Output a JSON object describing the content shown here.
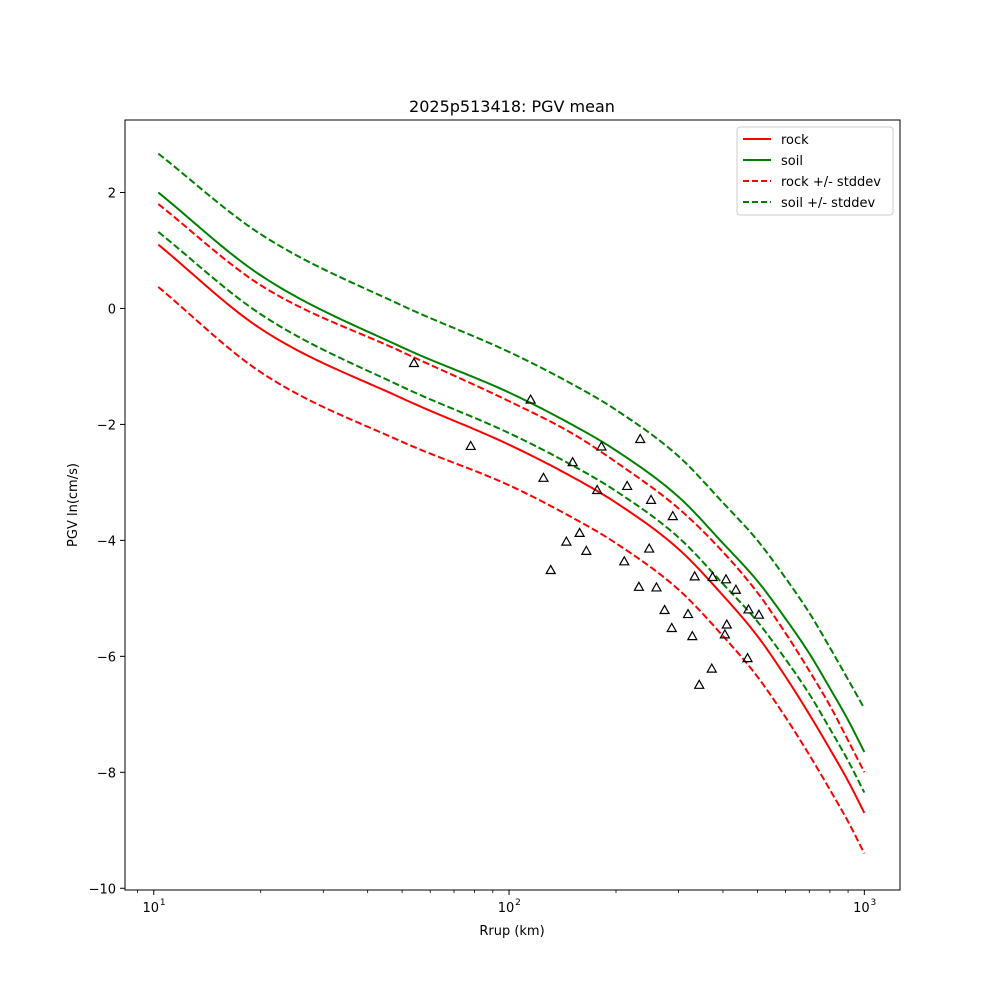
{
  "chart_data": {
    "type": "line",
    "title": "2025p513418: PGV mean",
    "xlabel": "Rrup (km)",
    "ylabel": "PGV ln(cm/s)",
    "xscale": "log",
    "xlim": [
      8.3,
      1260
    ],
    "ylim": [
      -10.03,
      3.25
    ],
    "x_ticks": [
      {
        "value": 10,
        "base": "10",
        "exp": "1"
      },
      {
        "value": 100,
        "base": "10",
        "exp": "2"
      },
      {
        "value": 1000,
        "base": "10",
        "exp": "3"
      }
    ],
    "y_ticks": [
      {
        "value": 2,
        "label": "2"
      },
      {
        "value": 0,
        "label": "0"
      },
      {
        "value": -2,
        "label": "−2"
      },
      {
        "value": -4,
        "label": "−4"
      },
      {
        "value": -6,
        "label": "−6"
      },
      {
        "value": -8,
        "label": "−8"
      },
      {
        "value": -10,
        "label": "−10"
      }
    ],
    "grid": false,
    "legend_position": "upper right",
    "series": [
      {
        "name": "rock",
        "color": "#ff0000",
        "dash": "solid",
        "x": [
          10.3,
          20,
          50,
          100,
          150,
          200,
          300,
          400,
          500,
          600,
          700,
          800,
          900,
          1000
        ],
        "y": [
          1.1,
          -0.35,
          -1.55,
          -2.35,
          -2.9,
          -3.35,
          -4.15,
          -4.95,
          -5.65,
          -6.35,
          -7.0,
          -7.6,
          -8.15,
          -8.7
        ]
      },
      {
        "name": "soil",
        "color": "#008000",
        "dash": "solid",
        "x": [
          10.3,
          20,
          50,
          100,
          150,
          200,
          300,
          400,
          500,
          600,
          700,
          800,
          900,
          1000
        ],
        "y": [
          2.0,
          0.57,
          -0.67,
          -1.45,
          -2.0,
          -2.45,
          -3.25,
          -4.05,
          -4.7,
          -5.35,
          -5.95,
          -6.55,
          -7.1,
          -7.65
        ]
      },
      {
        "name": "rock +/- stddev",
        "color": "#ff0000",
        "dash": "dashed",
        "x": [
          10.3,
          20,
          50,
          100,
          150,
          200,
          300,
          400,
          500,
          600,
          700,
          800,
          900,
          1000
        ],
        "y": [
          1.8,
          0.4,
          -0.75,
          -1.6,
          -2.15,
          -2.65,
          -3.45,
          -4.2,
          -4.9,
          -5.6,
          -6.25,
          -6.85,
          -7.45,
          -8.0
        ]
      },
      {
        "name": "",
        "color": "#ff0000",
        "dash": "dashed",
        "x": [
          10.3,
          20,
          50,
          100,
          150,
          200,
          300,
          400,
          500,
          600,
          700,
          800,
          900,
          1000
        ],
        "y": [
          0.37,
          -1.1,
          -2.3,
          -3.05,
          -3.6,
          -4.05,
          -4.85,
          -5.65,
          -6.35,
          -7.05,
          -7.7,
          -8.3,
          -8.85,
          -9.4
        ]
      },
      {
        "name": "soil +/- stddev",
        "color": "#008000",
        "dash": "dashed",
        "x": [
          10.3,
          20,
          50,
          100,
          150,
          200,
          300,
          400,
          500,
          600,
          700,
          800,
          900,
          1000
        ],
        "y": [
          2.67,
          1.28,
          0.05,
          -0.75,
          -1.3,
          -1.75,
          -2.55,
          -3.35,
          -4.0,
          -4.65,
          -5.25,
          -5.85,
          -6.4,
          -6.9
        ]
      },
      {
        "name": "",
        "color": "#008000",
        "dash": "dashed",
        "x": [
          10.3,
          20,
          50,
          100,
          150,
          200,
          300,
          400,
          500,
          600,
          700,
          800,
          900,
          1000
        ],
        "y": [
          1.32,
          -0.1,
          -1.35,
          -2.15,
          -2.7,
          -3.15,
          -3.95,
          -4.75,
          -5.4,
          -6.05,
          -6.65,
          -7.25,
          -7.8,
          -8.35
        ]
      }
    ],
    "observations": {
      "marker": "triangle-open",
      "color": "#000000",
      "points": [
        {
          "x": 54,
          "y": -0.95
        },
        {
          "x": 78,
          "y": -2.38
        },
        {
          "x": 115,
          "y": -1.58
        },
        {
          "x": 125,
          "y": -2.93
        },
        {
          "x": 131,
          "y": -4.52
        },
        {
          "x": 145,
          "y": -4.03
        },
        {
          "x": 151,
          "y": -2.66
        },
        {
          "x": 158,
          "y": -3.88
        },
        {
          "x": 165,
          "y": -4.19
        },
        {
          "x": 177,
          "y": -3.14
        },
        {
          "x": 182,
          "y": -2.39
        },
        {
          "x": 211,
          "y": -4.37
        },
        {
          "x": 215,
          "y": -3.07
        },
        {
          "x": 232,
          "y": -4.81
        },
        {
          "x": 234,
          "y": -2.26
        },
        {
          "x": 248,
          "y": -4.15
        },
        {
          "x": 251,
          "y": -3.31
        },
        {
          "x": 260,
          "y": -4.82
        },
        {
          "x": 274,
          "y": -5.21
        },
        {
          "x": 287,
          "y": -5.52
        },
        {
          "x": 289,
          "y": -3.59
        },
        {
          "x": 319,
          "y": -5.28
        },
        {
          "x": 328,
          "y": -5.66
        },
        {
          "x": 333,
          "y": -4.63
        },
        {
          "x": 343,
          "y": -6.5
        },
        {
          "x": 372,
          "y": -6.22
        },
        {
          "x": 374,
          "y": -4.64
        },
        {
          "x": 405,
          "y": -5.63
        },
        {
          "x": 408,
          "y": -4.68
        },
        {
          "x": 410,
          "y": -5.46
        },
        {
          "x": 435,
          "y": -4.86
        },
        {
          "x": 469,
          "y": -6.04
        },
        {
          "x": 472,
          "y": -5.2
        },
        {
          "x": 505,
          "y": -5.29
        }
      ]
    }
  }
}
